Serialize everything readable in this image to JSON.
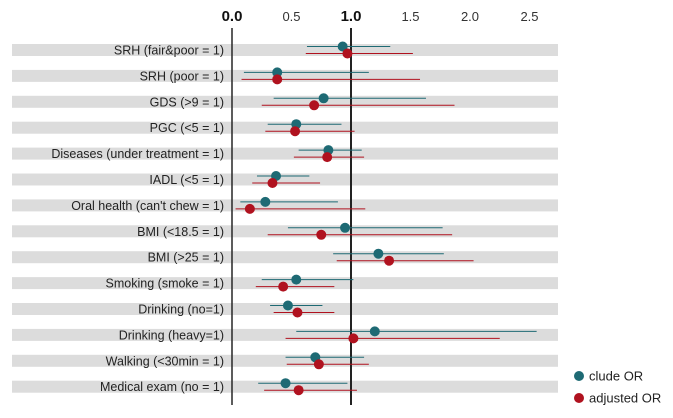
{
  "chart_data": {
    "type": "forest",
    "xlim": [
      0.0,
      2.5
    ],
    "x_ticks": [
      "0.0",
      "0.5",
      "1.0",
      "1.5",
      "2.0",
      "2.5"
    ],
    "reference_line": 1.0,
    "legend": [
      {
        "name": "clude OR",
        "color": "#1e6a74"
      },
      {
        "name": "adjusted OR",
        "color": "#b0121f"
      }
    ],
    "rows": [
      {
        "label": "SRH (fair&poor = 1)",
        "crude": {
          "or": 0.93,
          "lo": 0.63,
          "hi": 1.33
        },
        "adjusted": {
          "or": 0.97,
          "lo": 0.62,
          "hi": 1.52
        }
      },
      {
        "label": "SRH (poor = 1)",
        "crude": {
          "or": 0.38,
          "lo": 0.1,
          "hi": 1.15
        },
        "adjusted": {
          "or": 0.38,
          "lo": 0.08,
          "hi": 1.58
        }
      },
      {
        "label": "GDS (>9 = 1)",
        "crude": {
          "or": 0.77,
          "lo": 0.35,
          "hi": 1.63
        },
        "adjusted": {
          "or": 0.69,
          "lo": 0.25,
          "hi": 1.87
        }
      },
      {
        "label": "PGC (<5 = 1)",
        "crude": {
          "or": 0.54,
          "lo": 0.3,
          "hi": 0.92
        },
        "adjusted": {
          "or": 0.53,
          "lo": 0.28,
          "hi": 1.03
        }
      },
      {
        "label": "Diseases (under treatment = 1)",
        "crude": {
          "or": 0.81,
          "lo": 0.56,
          "hi": 1.09
        },
        "adjusted": {
          "or": 0.8,
          "lo": 0.52,
          "hi": 1.11
        }
      },
      {
        "label": "IADL (<5 = 1)",
        "crude": {
          "or": 0.37,
          "lo": 0.21,
          "hi": 0.65
        },
        "adjusted": {
          "or": 0.34,
          "lo": 0.17,
          "hi": 0.74
        }
      },
      {
        "label": "Oral health (can't chew = 1)",
        "crude": {
          "or": 0.28,
          "lo": 0.07,
          "hi": 0.89
        },
        "adjusted": {
          "or": 0.15,
          "lo": 0.03,
          "hi": 1.12
        }
      },
      {
        "label": "BMI (<18.5 = 1)",
        "crude": {
          "or": 0.95,
          "lo": 0.47,
          "hi": 1.77
        },
        "adjusted": {
          "or": 0.75,
          "lo": 0.3,
          "hi": 1.85
        }
      },
      {
        "label": "BMI (>25 = 1)",
        "crude": {
          "or": 1.23,
          "lo": 0.85,
          "hi": 1.78
        },
        "adjusted": {
          "or": 1.32,
          "lo": 0.88,
          "hi": 2.03
        }
      },
      {
        "label": "Smoking (smoke = 1)",
        "crude": {
          "or": 0.54,
          "lo": 0.25,
          "hi": 1.02
        },
        "adjusted": {
          "or": 0.43,
          "lo": 0.2,
          "hi": 0.86
        }
      },
      {
        "label": "Drinking (no=1)",
        "crude": {
          "or": 0.47,
          "lo": 0.32,
          "hi": 0.76
        },
        "adjusted": {
          "or": 0.55,
          "lo": 0.35,
          "hi": 0.86
        }
      },
      {
        "label": "Drinking (heavy=1)",
        "crude": {
          "or": 1.2,
          "lo": 0.54,
          "hi": 2.56
        },
        "adjusted": {
          "or": 1.02,
          "lo": 0.45,
          "hi": 2.25
        }
      },
      {
        "label": "Walking (<30min = 1)",
        "crude": {
          "or": 0.7,
          "lo": 0.45,
          "hi": 1.11
        },
        "adjusted": {
          "or": 0.73,
          "lo": 0.46,
          "hi": 1.15
        }
      },
      {
        "label": "Medical exam (no = 1)",
        "crude": {
          "or": 0.45,
          "lo": 0.22,
          "hi": 0.97
        },
        "adjusted": {
          "or": 0.56,
          "lo": 0.27,
          "hi": 1.05
        }
      }
    ]
  }
}
